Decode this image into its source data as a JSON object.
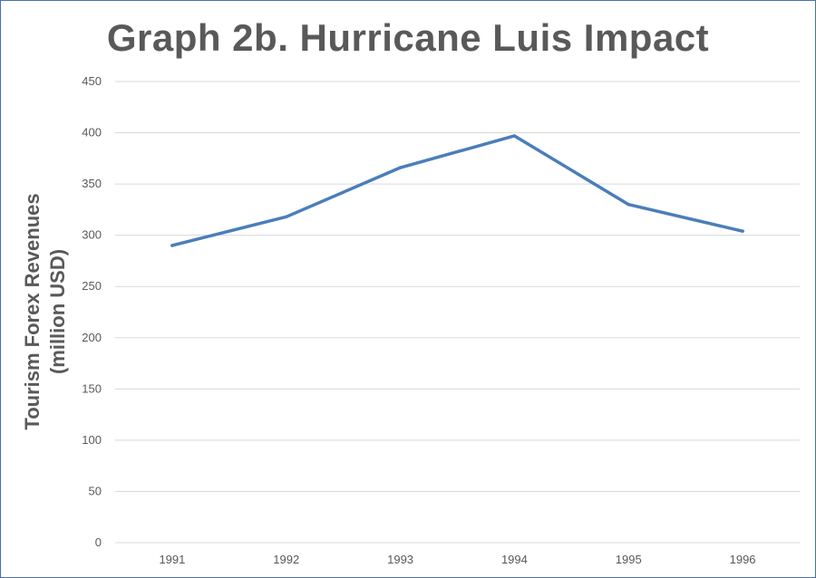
{
  "chart_data": {
    "type": "line",
    "title": "Graph 2b. Hurricane Luis Impact",
    "xlabel": "",
    "ylabel_line1": "Tourism Forex Revenues",
    "ylabel_line2": "(million USD)",
    "categories": [
      "1991",
      "1992",
      "1993",
      "1994",
      "1995",
      "1996"
    ],
    "series": [
      {
        "values": [
          290,
          318,
          366,
          397,
          330,
          304
        ]
      }
    ],
    "ylim": [
      0,
      450
    ],
    "yticks": [
      0,
      50,
      100,
      150,
      200,
      250,
      300,
      350,
      400,
      450
    ],
    "grid": "horizontal",
    "legend": "none",
    "colors": {
      "line": "#4a7ebb",
      "grid": "#d9d9d9",
      "text": "#595959",
      "border": "#4a6fa8"
    }
  }
}
